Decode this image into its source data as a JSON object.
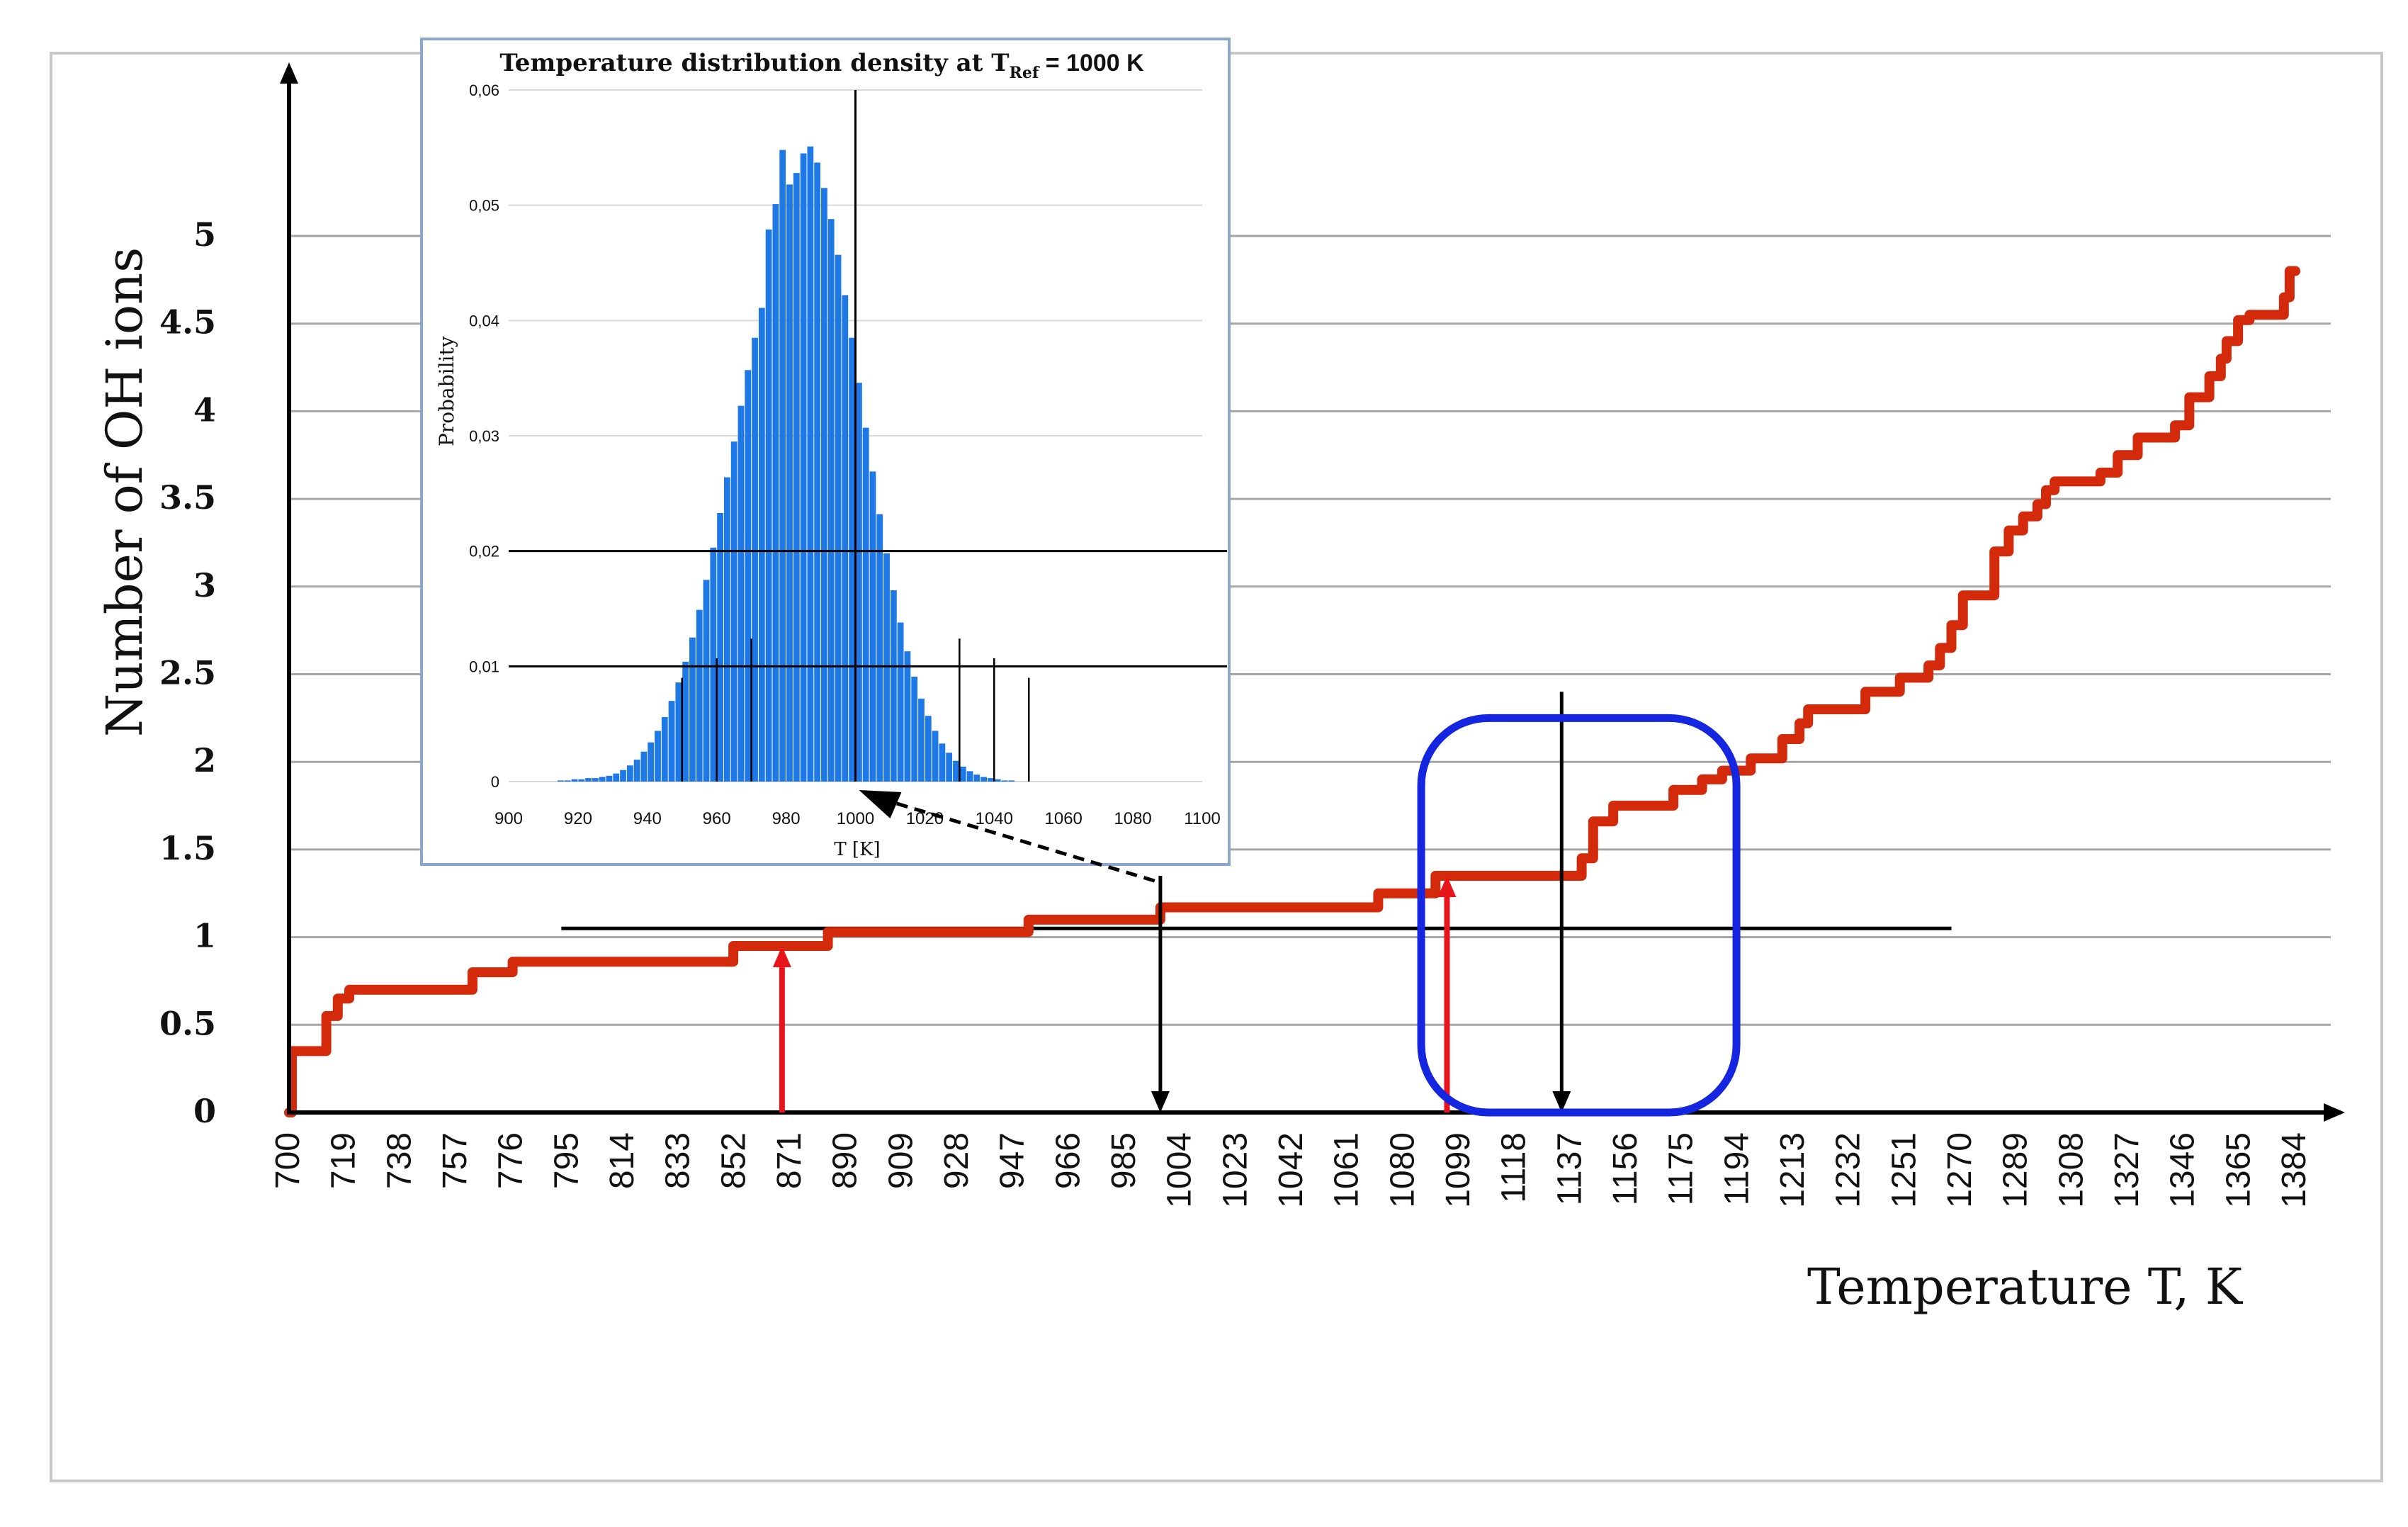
{
  "chart_data": [
    {
      "type": "line",
      "title": "",
      "xlabel": "Temperature T, K",
      "ylabel": "Number of OH ions",
      "x_tick_labels": [
        "700",
        "719",
        "738",
        "757",
        "776",
        "795",
        "814",
        "833",
        "852",
        "871",
        "890",
        "909",
        "928",
        "947",
        "966",
        "985",
        "1004",
        "1023",
        "1042",
        "1061",
        "1080",
        "1099",
        "1118",
        "1137",
        "1156",
        "1175",
        "1194",
        "1213",
        "1232",
        "1251",
        "1270",
        "1289",
        "1308",
        "1327",
        "1346",
        "1365",
        "1384"
      ],
      "y_tick_labels": [
        "0",
        "0.5",
        "1",
        "1.5",
        "2",
        "2.5",
        "3",
        "3.5",
        "4",
        "4.5",
        "5"
      ],
      "xlim": [
        700,
        1400
      ],
      "ylim": [
        0,
        5
      ],
      "grid": true,
      "series": [
        {
          "color": "#d42a0c",
          "x": [
            700,
            701,
            701,
            705,
            705,
            713,
            713,
            717,
            717,
            721,
            721,
            764,
            764,
            778,
            778,
            855,
            855,
            888,
            888,
            958,
            958,
            1004,
            1004,
            1080,
            1080,
            1100,
            1100,
            1151,
            1151,
            1155,
            1155,
            1162,
            1162,
            1183,
            1183,
            1193,
            1193,
            1200,
            1200,
            1210,
            1210,
            1221,
            1221,
            1227,
            1227,
            1230,
            1230,
            1250,
            1250,
            1262,
            1262,
            1272,
            1272,
            1276,
            1276,
            1280,
            1280,
            1284,
            1284,
            1295,
            1295,
            1300,
            1300,
            1305,
            1305,
            1310,
            1310,
            1313,
            1313,
            1316,
            1316,
            1332,
            1332,
            1338,
            1338,
            1345,
            1345,
            1358,
            1358,
            1363,
            1363,
            1370,
            1370,
            1374,
            1374,
            1376,
            1376,
            1380,
            1380,
            1384,
            1384,
            1396,
            1396,
            1398,
            1398,
            1400
          ],
          "y": [
            0,
            0,
            0.35,
            0.35,
            0.35,
            0.35,
            0.55,
            0.55,
            0.65,
            0.65,
            0.7,
            0.7,
            0.8,
            0.8,
            0.86,
            0.86,
            0.95,
            0.95,
            1.03,
            1.03,
            1.1,
            1.1,
            1.17,
            1.17,
            1.25,
            1.25,
            1.35,
            1.35,
            1.45,
            1.45,
            1.66,
            1.66,
            1.75,
            1.75,
            1.84,
            1.84,
            1.9,
            1.9,
            1.95,
            1.95,
            2.02,
            2.02,
            2.13,
            2.13,
            2.22,
            2.22,
            2.3,
            2.3,
            2.4,
            2.4,
            2.48,
            2.48,
            2.55,
            2.55,
            2.65,
            2.65,
            2.78,
            2.78,
            2.95,
            2.95,
            3.2,
            3.2,
            3.32,
            3.32,
            3.4,
            3.4,
            3.47,
            3.47,
            3.55,
            3.55,
            3.6,
            3.6,
            3.65,
            3.65,
            3.75,
            3.75,
            3.85,
            3.85,
            3.92,
            3.92,
            4.08,
            4.08,
            4.2,
            4.2,
            4.3,
            4.3,
            4.4,
            4.4,
            4.52,
            4.52,
            4.55,
            4.55,
            4.65,
            4.65,
            4.8,
            4.8
          ]
        }
      ],
      "reference_line": {
        "y": 1.05,
        "x_range": [
          795,
          1280
        ],
        "color": "#000000"
      },
      "annotations": [
        {
          "kind": "arrow",
          "direction": "up",
          "x": 872,
          "y_from": 0,
          "y_to": 0.95,
          "color": "#e8141c"
        },
        {
          "kind": "arrow",
          "direction": "down",
          "x": 1004,
          "y_from": 1.35,
          "y_to": 0,
          "color": "#000000"
        },
        {
          "kind": "arrow",
          "direction": "up",
          "x": 1104,
          "y_from": 0,
          "y_to": 1.35,
          "color": "#e8141c"
        },
        {
          "kind": "arrow",
          "direction": "down",
          "x": 1144,
          "y_from": 2.4,
          "y_to": 0,
          "color": "#000000"
        },
        {
          "kind": "highlight-box",
          "x_range": [
            1095,
            1205
          ],
          "y_range": [
            0,
            2.25
          ],
          "color": "#1426e0"
        },
        {
          "kind": "dashed-arrow",
          "from": "main-curve at x≈1004",
          "to": "inset x-axis at 1000",
          "color": "#000000"
        }
      ]
    },
    {
      "type": "bar",
      "title_prefix": "Temperature distribution density at T",
      "title_subscript": "Ref",
      "title_suffix": " = 1000 K",
      "xlabel": "T [K]",
      "ylabel": "Probability",
      "x_tick_labels": [
        "900",
        "920",
        "940",
        "960",
        "980",
        "1000",
        "1020",
        "1040",
        "1060",
        "1080",
        "1100"
      ],
      "y_tick_labels": [
        "0",
        "0,01",
        "0,02",
        "0,03",
        "0,04",
        "0,05",
        "0,06"
      ],
      "xlim": [
        900,
        1100
      ],
      "ylim": [
        0,
        0.06
      ],
      "bar_color": "#1e78e6",
      "bin_width": 2,
      "bin_start": 914,
      "values": [
        0.0001,
        0.0001,
        0.0002,
        0.0002,
        0.0003,
        0.0003,
        0.0004,
        0.0005,
        0.0007,
        0.001,
        0.0014,
        0.0019,
        0.0026,
        0.0034,
        0.0044,
        0.0056,
        0.007,
        0.0086,
        0.0104,
        0.0125,
        0.0149,
        0.0175,
        0.0203,
        0.0233,
        0.0264,
        0.0295,
        0.0326,
        0.0357,
        0.0385,
        0.0411,
        0.0479,
        0.0501,
        0.0548,
        0.0518,
        0.0528,
        0.0545,
        0.0551,
        0.0537,
        0.0515,
        0.0488,
        0.0457,
        0.0422,
        0.0385,
        0.0346,
        0.0307,
        0.0269,
        0.0232,
        0.0198,
        0.0166,
        0.0138,
        0.0113,
        0.0091,
        0.0072,
        0.0057,
        0.0044,
        0.0033,
        0.0025,
        0.0018,
        0.0013,
        0.0009,
        0.0006,
        0.0004,
        0.0003,
        0.0002,
        0.0001,
        0.0001
      ],
      "vertical_markers": [
        950,
        960,
        970,
        1000,
        1030,
        1040,
        1050
      ],
      "horizontal_markers": [
        0.01,
        0.02
      ],
      "grid": true
    }
  ]
}
